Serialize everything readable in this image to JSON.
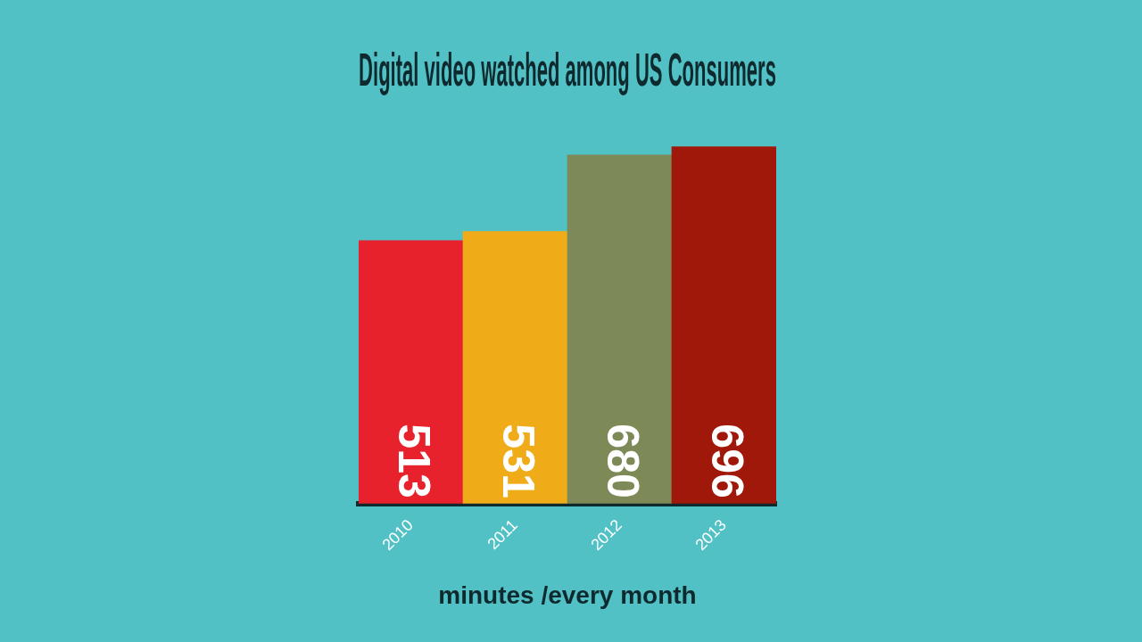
{
  "chart_data": {
    "type": "bar",
    "title": "Digital video watched among US Consumers",
    "xlabel": "minutes /every month",
    "categories": [
      "2010",
      "2011",
      "2012",
      "2013"
    ],
    "values": [
      513,
      531,
      680,
      696
    ],
    "colors": [
      "#e8222c",
      "#f0ac18",
      "#7d8a57",
      "#a0180a"
    ],
    "data_labels": true,
    "grid": false,
    "legend": false
  }
}
